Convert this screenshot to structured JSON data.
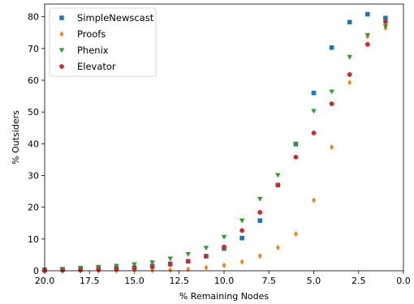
{
  "chart_data": {
    "type": "scatter",
    "xlabel": "% Remaining Nodes",
    "ylabel": "% Outsiders",
    "xlim": [
      20.0,
      0.0
    ],
    "ylim": [
      0,
      84
    ],
    "x_inverted": true,
    "grid": false,
    "legend_position": "top-left",
    "x_ticks": [
      20.0,
      17.5,
      15.0,
      12.5,
      10.0,
      7.5,
      5.0,
      2.5,
      0.0
    ],
    "x_tick_labels": [
      "20.0",
      "17.5",
      "15.0",
      "12.5",
      "10.0",
      "7.5",
      "5.0",
      "2.5",
      "0.0"
    ],
    "y_ticks": [
      0,
      10,
      20,
      30,
      40,
      50,
      60,
      70,
      80
    ],
    "y_tick_labels": [
      "0",
      "10",
      "20",
      "30",
      "40",
      "50",
      "60",
      "70",
      "80"
    ],
    "x": [
      20,
      19,
      18,
      17,
      16,
      15,
      14,
      13,
      12,
      11,
      10,
      9,
      8,
      7,
      6,
      5,
      4,
      3,
      2,
      1
    ],
    "series": [
      {
        "name": "SimpleNewscast",
        "marker": "square",
        "color": "#1f77b4",
        "values": [
          0.3,
          0.5,
          0.6,
          0.7,
          0.8,
          1.0,
          1.5,
          2.2,
          3.0,
          4.6,
          7.0,
          10.3,
          15.8,
          27.0,
          39.9,
          56.0,
          70.3,
          78.3,
          80.8,
          79.6
        ]
      },
      {
        "name": "Proofs",
        "marker": "diamond",
        "color": "#ff7f0e",
        "values": [
          0.0,
          0.0,
          0.0,
          0.0,
          0.0,
          0.0,
          0.1,
          0.2,
          0.5,
          1.0,
          1.7,
          2.8,
          4.7,
          7.3,
          11.6,
          22.2,
          38.9,
          59.3,
          73.8,
          76.5
        ]
      },
      {
        "name": "Phenix",
        "marker": "triangle-down",
        "color": "#2ca02c",
        "values": [
          0.2,
          0.5,
          0.9,
          1.2,
          1.5,
          2.0,
          2.6,
          3.8,
          5.2,
          7.2,
          10.6,
          15.8,
          22.6,
          30.1,
          40.0,
          50.3,
          56.4,
          67.3,
          74.2,
          77.0
        ]
      },
      {
        "name": "Elevator",
        "marker": "circle",
        "color": "#d62728",
        "values": [
          0.0,
          0.1,
          0.2,
          0.4,
          0.6,
          0.8,
          1.2,
          2.0,
          3.0,
          4.6,
          7.5,
          12.7,
          18.4,
          27.0,
          35.8,
          43.4,
          52.6,
          61.8,
          71.3,
          78.4
        ]
      }
    ]
  }
}
